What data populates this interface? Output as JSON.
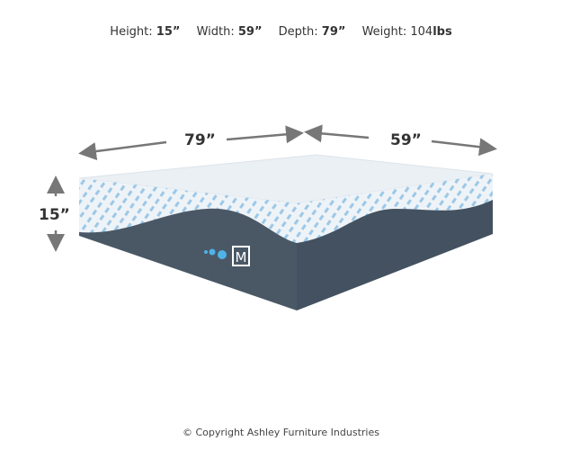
{
  "specs": {
    "height_label": "Height:",
    "height_value": "15”",
    "width_label": "Width:",
    "width_value": "59”",
    "depth_label": "Depth:",
    "depth_value": "79”",
    "weight_label": "Weight:",
    "weight_value": "104",
    "weight_unit": "lbs"
  },
  "dimensions": {
    "depth": "79”",
    "width": "59”",
    "height": "15”"
  },
  "logo_letter": "M",
  "copyright": "© Copyright Ashley Furniture Industries",
  "colors": {
    "base": "#4a5866",
    "top": "#e9eff4",
    "pattern": "#3a9ad6",
    "arrow": "#777777"
  }
}
